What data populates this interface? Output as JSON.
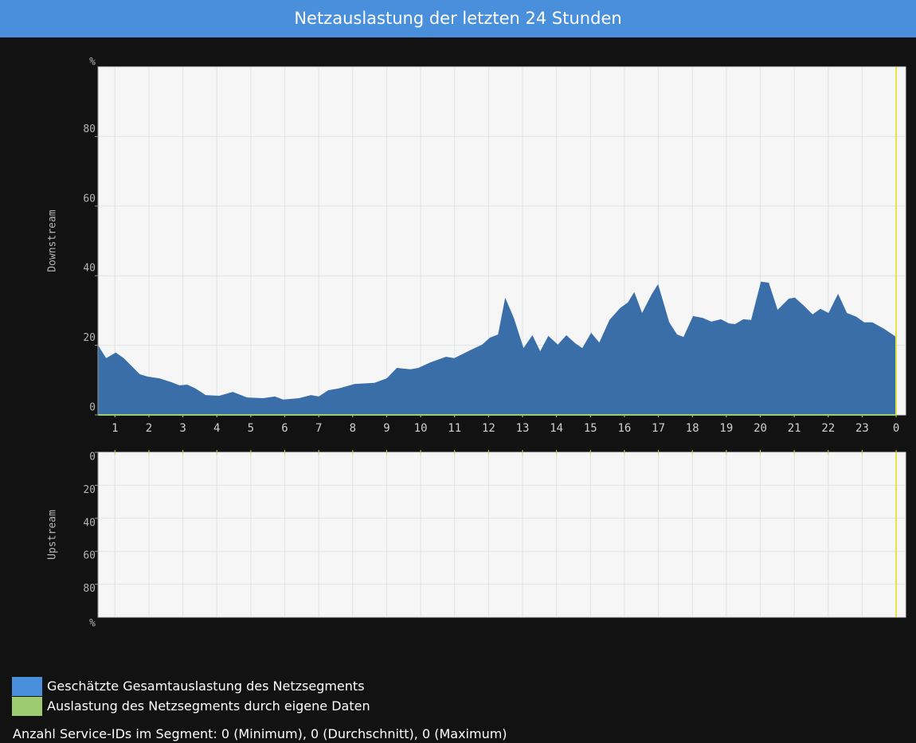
{
  "header": {
    "title": "Netzauslastung der letzten 24 Stunden"
  },
  "chart_data": [
    {
      "type": "area",
      "axis_title": "Downstream",
      "unit": "%",
      "xlim": [
        0.5,
        24.28
      ],
      "xticks": [
        1,
        2,
        3,
        4,
        5,
        6,
        7,
        8,
        9,
        10,
        11,
        12,
        13,
        14,
        15,
        16,
        17,
        18,
        19,
        20,
        21,
        22,
        23,
        {
          "value": 24,
          "label": "0"
        }
      ],
      "ylim": [
        0,
        100
      ],
      "yticks": [
        0,
        20,
        40,
        60,
        80
      ],
      "grid": true,
      "marker_x": 24,
      "marker_color": "#e3e34a",
      "x": [
        0.51,
        0.74,
        1.02,
        1.26,
        1.73,
        1.96,
        2.31,
        2.66,
        2.9,
        3.13,
        3.37,
        3.67,
        4.07,
        4.47,
        4.89,
        5.36,
        5.71,
        5.95,
        6.42,
        6.77,
        7.0,
        7.28,
        7.59,
        8.06,
        8.64,
        9.0,
        9.3,
        9.7,
        9.93,
        10.29,
        10.75,
        10.99,
        11.46,
        11.81,
        12.04,
        12.28,
        12.49,
        12.75,
        13.03,
        13.29,
        13.52,
        13.76,
        14.04,
        14.29,
        14.55,
        14.76,
        15.02,
        15.26,
        15.56,
        15.87,
        16.1,
        16.29,
        16.52,
        16.8,
        16.99,
        17.32,
        17.55,
        17.74,
        18.02,
        18.3,
        18.56,
        18.84,
        19.08,
        19.26,
        19.5,
        19.73,
        20.02,
        20.25,
        20.51,
        20.84,
        21.02,
        21.26,
        21.54,
        21.77,
        22.01,
        22.29,
        22.55,
        22.83,
        23.06,
        23.3,
        23.65,
        24.0
      ],
      "series": [
        {
          "name": "Geschätzte Gesamtauslastung des Netzsegments",
          "color": "#4a8fdb",
          "fill": "#3a6ea8",
          "values": [
            19.9,
            16.3,
            17.9,
            16.3,
            11.7,
            11.0,
            10.5,
            9.4,
            8.5,
            8.7,
            7.6,
            5.7,
            5.5,
            6.6,
            5.0,
            4.8,
            5.3,
            4.4,
            4.8,
            5.7,
            5.3,
            7.1,
            7.6,
            8.9,
            9.2,
            10.5,
            13.5,
            13.1,
            13.5,
            15.1,
            16.7,
            16.3,
            18.6,
            20.2,
            22.2,
            23.1,
            33.7,
            27.7,
            19.2,
            22.9,
            18.3,
            22.7,
            20.2,
            22.9,
            20.6,
            19.2,
            23.6,
            20.8,
            27.3,
            30.7,
            32.3,
            35.3,
            29.3,
            34.6,
            37.6,
            26.6,
            23.1,
            22.4,
            28.4,
            27.9,
            26.8,
            27.5,
            26.3,
            26.1,
            27.5,
            27.3,
            38.3,
            38.0,
            30.2,
            33.4,
            33.7,
            31.6,
            28.9,
            30.5,
            29.3,
            34.8,
            29.3,
            28.2,
            26.6,
            26.6,
            24.7,
            22.4
          ]
        },
        {
          "name": "Auslastung des Netzsegments durch eigene Daten",
          "color": "#9ccc6f",
          "values": [
            0,
            0,
            0,
            0,
            0,
            0,
            0,
            0,
            0,
            0,
            0,
            0,
            0,
            0,
            0,
            0,
            0,
            0,
            0,
            0,
            0,
            0,
            0,
            0,
            0,
            0,
            0,
            0,
            0,
            0,
            0,
            0,
            0,
            0,
            0,
            0,
            0,
            0,
            0,
            0,
            0,
            0,
            0,
            0,
            0,
            0,
            0,
            0,
            0,
            0,
            0,
            0,
            0,
            0,
            0,
            0,
            0,
            0,
            0,
            0,
            0,
            0,
            0,
            0,
            0,
            0,
            0,
            0,
            0,
            0,
            0,
            0,
            0,
            0,
            0,
            0,
            0,
            0,
            0,
            0,
            0,
            0
          ]
        }
      ]
    },
    {
      "type": "area",
      "axis_title": "Upstream",
      "unit": "%",
      "inverted": true,
      "xlim": [
        0.5,
        24.28
      ],
      "xticks": [
        1,
        2,
        3,
        4,
        5,
        6,
        7,
        8,
        9,
        10,
        11,
        12,
        13,
        14,
        15,
        16,
        17,
        18,
        19,
        20,
        21,
        22,
        23,
        24
      ],
      "ylim": [
        0,
        100
      ],
      "yticks": [
        0,
        20,
        40,
        60,
        80
      ],
      "grid": true,
      "marker_x": 24,
      "marker_color": "#e3e34a"
    }
  ],
  "footer": "Anzahl Service-IDs im Segment: 0 (Minimum), 0 (Durchschnitt), 0 (Maximum)"
}
